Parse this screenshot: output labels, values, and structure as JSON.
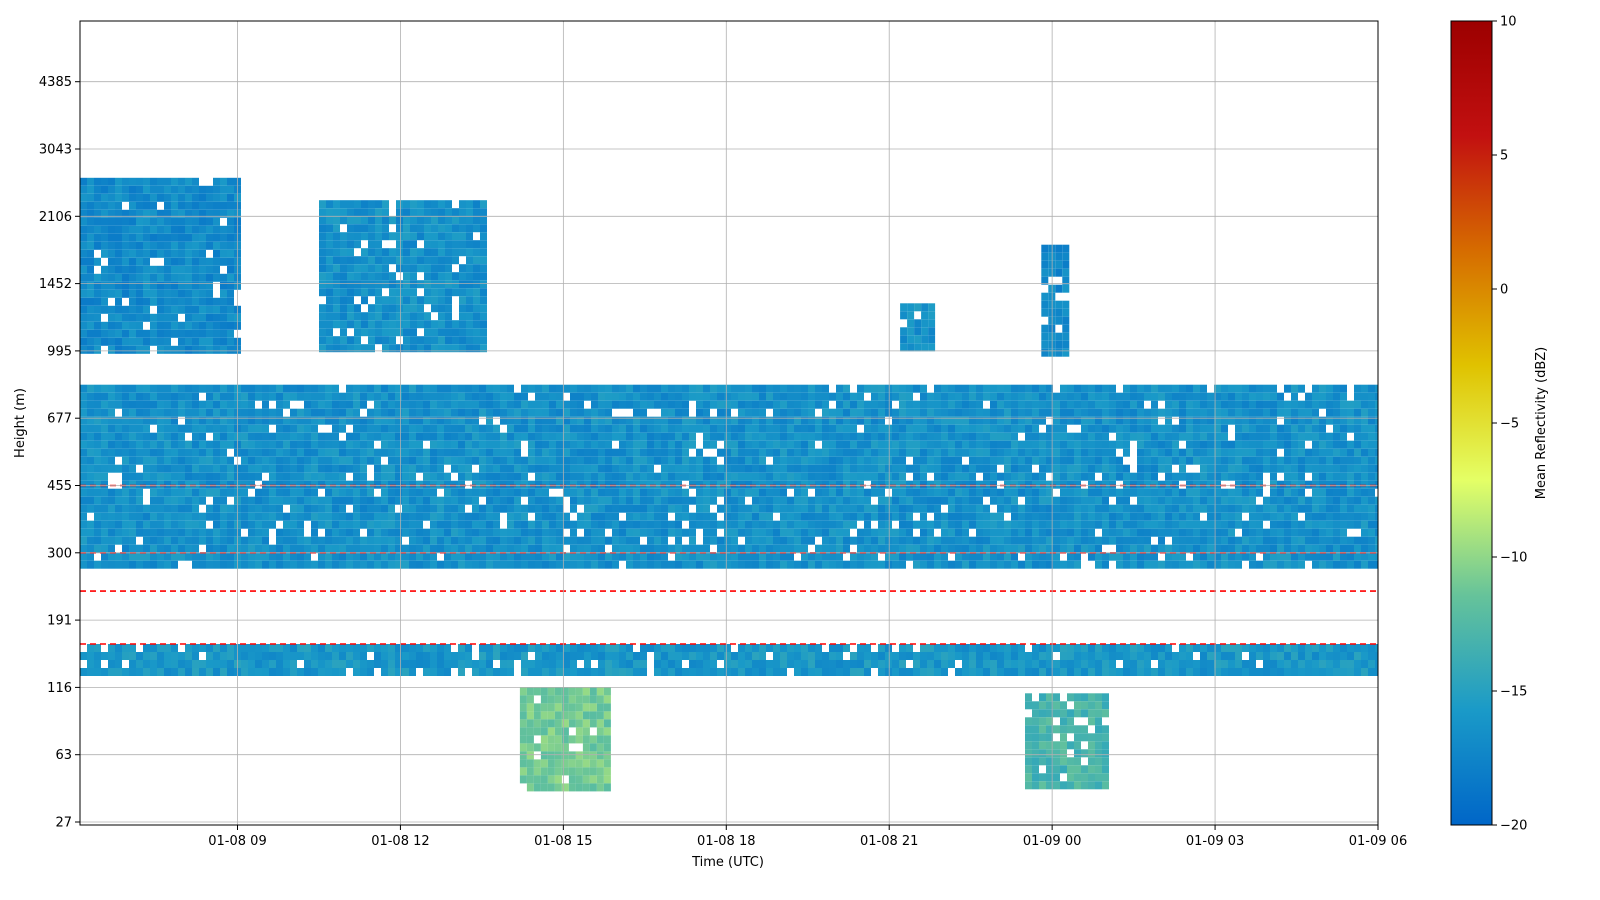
{
  "chart_data": {
    "type": "heatmap",
    "title": "",
    "xlabel": "Time (UTC)",
    "ylabel": "Height (m)",
    "grid": true,
    "x_range_hours": [
      6.1,
      30.0
    ],
    "x_ticks": [
      {
        "hour": 9,
        "label": "01-08 09"
      },
      {
        "hour": 12,
        "label": "01-08 12"
      },
      {
        "hour": 15,
        "label": "01-08 15"
      },
      {
        "hour": 18,
        "label": "01-08 18"
      },
      {
        "hour": 21,
        "label": "01-08 21"
      },
      {
        "hour": 24,
        "label": "01-09 00"
      },
      {
        "hour": 27,
        "label": "01-09 03"
      },
      {
        "hour": 30,
        "label": "01-09 06"
      }
    ],
    "y_levels": [
      "27",
      "63",
      "116",
      "191",
      "300",
      "455",
      "677",
      "995",
      "1452",
      "2106",
      "3043",
      "4385"
    ],
    "colorbar": {
      "label": "Mean Reflectivity (dBZ)",
      "min": -20,
      "max": 10,
      "ticks": [
        "10",
        "5",
        "0",
        "−5",
        "−10",
        "−15",
        "−20"
      ],
      "colors": [
        "#0066c8",
        "#1a9ac8",
        "#66c39a",
        "#e4ff66",
        "#e0c200",
        "#d66c00",
        "#c21010",
        "#9c0000"
      ]
    },
    "contour_color": "#ff0000",
    "regions": [
      {
        "from_hour": 6.1,
        "to_hour": 30.0,
        "height_from": 270,
        "height_to": 820,
        "dbz": -16.5,
        "note": "continuous layer"
      },
      {
        "from_hour": 6.1,
        "to_hour": 30.0,
        "height_from": 128,
        "height_to": 160,
        "dbz": -16
      },
      {
        "from_hour": 6.1,
        "to_hour": 9.0,
        "height_from": 1000,
        "height_to": 2600,
        "dbz": -17
      },
      {
        "from_hour": 10.5,
        "to_hour": 13.5,
        "height_from": 995,
        "height_to": 2300,
        "dbz": -16.5
      },
      {
        "from_hour": 21.2,
        "to_hour": 21.8,
        "height_from": 995,
        "height_to": 1300,
        "dbz": -16.5
      },
      {
        "from_hour": 23.8,
        "to_hour": 24.3,
        "height_from": 995,
        "height_to": 1800,
        "dbz": -17
      },
      {
        "from_hour": 14.2,
        "to_hour": 15.8,
        "height_from": 40,
        "height_to": 116,
        "dbz": -11
      },
      {
        "from_hour": 23.5,
        "to_hour": 25.0,
        "height_from": 45,
        "height_to": 110,
        "dbz": -13
      }
    ]
  }
}
